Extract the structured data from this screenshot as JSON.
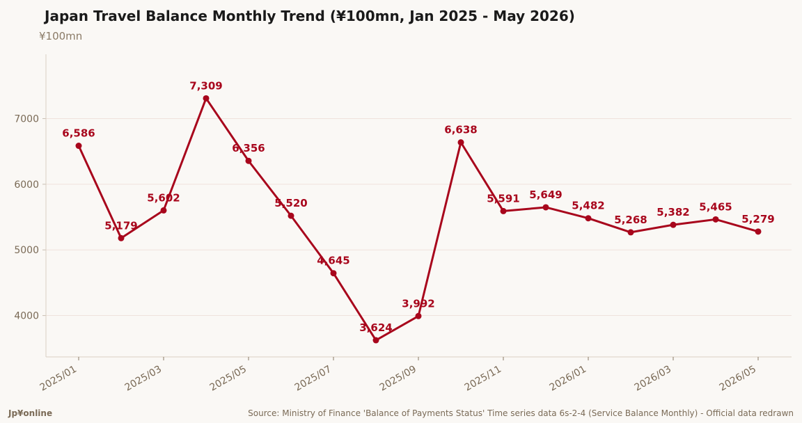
{
  "chart_data": {
    "type": "line",
    "title": "Japan Travel Balance Monthly Trend (¥100mn, Jan 2025 - May 2026)",
    "unit_label": "¥100mn",
    "x": [
      "2025/01",
      "2025/02",
      "2025/03",
      "2025/04",
      "2025/05",
      "2025/06",
      "2025/07",
      "2025/08",
      "2025/09",
      "2025/10",
      "2025/11",
      "2025/12",
      "2026/01",
      "2026/02",
      "2026/03",
      "2026/04",
      "2026/05"
    ],
    "x_tick_labels": [
      "2025/01",
      "2025/03",
      "2025/05",
      "2025/07",
      "2025/09",
      "2025/11",
      "2026/01",
      "2026/03",
      "2026/05"
    ],
    "values": [
      6586,
      5179,
      5602,
      7309,
      6356,
      5520,
      4645,
      3624,
      3992,
      6638,
      5591,
      5649,
      5482,
      5268,
      5382,
      5465,
      5279
    ],
    "data_labels": [
      "6,586",
      "5,179",
      "5,602",
      "7,309",
      "6,356",
      "5,520",
      "4,645",
      "3,624",
      "3,992",
      "6,638",
      "5,591",
      "5,649",
      "5,482",
      "5,268",
      "5,382",
      "5,465",
      "5,279"
    ],
    "y_ticks": [
      4000,
      5000,
      6000,
      7000
    ],
    "ylim": [
      3370,
      7980
    ],
    "grid": "horizontal",
    "line_color": "#a8061c",
    "label_color": "#a8061c"
  },
  "footer": {
    "logo": "Jp¥online",
    "source": "Source: Ministry of Finance 'Balance of Payments Status' Time series data 6s-2-4 (Service Balance Monthly) - Official data redrawn"
  }
}
